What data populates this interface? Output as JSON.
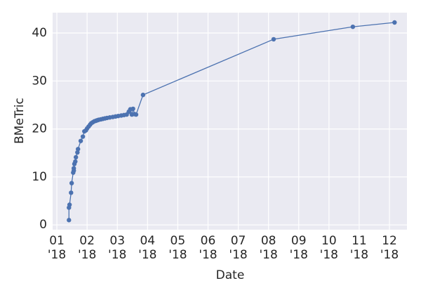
{
  "chart_data": {
    "type": "line",
    "xlabel": "Date",
    "ylabel": "BMeTric",
    "color": "#4c72b0",
    "grid": true,
    "x": [
      1.4,
      1.4,
      1.42,
      1.47,
      1.49,
      1.54,
      1.56,
      1.56,
      1.58,
      1.61,
      1.63,
      1.68,
      1.7,
      1.79,
      1.86,
      1.91,
      1.96,
      2.0,
      2.05,
      2.1,
      2.14,
      2.19,
      2.24,
      2.29,
      2.33,
      2.38,
      2.45,
      2.52,
      2.59,
      2.66,
      2.75,
      2.85,
      2.94,
      3.03,
      3.13,
      3.22,
      3.31,
      3.38,
      3.43,
      3.48,
      3.52,
      3.57,
      3.62,
      3.85,
      8.17,
      10.79,
      12.17
    ],
    "values": [
      1.0,
      3.6,
      4.2,
      6.7,
      8.7,
      10.9,
      11.3,
      11.8,
      12.7,
      13.2,
      14.1,
      15.1,
      15.8,
      17.5,
      18.4,
      19.5,
      19.7,
      20.1,
      20.5,
      20.9,
      21.2,
      21.4,
      21.6,
      21.7,
      21.8,
      21.9,
      22.0,
      22.1,
      22.2,
      22.3,
      22.4,
      22.5,
      22.6,
      22.7,
      22.8,
      22.9,
      23.0,
      23.6,
      24.1,
      23.0,
      24.2,
      23.1,
      23.0,
      27.1,
      38.7,
      41.3,
      42.2
    ],
    "xlim": [
      0.86,
      12.58
    ],
    "ylim": [
      -1.0,
      44.25
    ],
    "xticks": [
      {
        "value": 1,
        "label": "01\n'18"
      },
      {
        "value": 2,
        "label": "02\n'18"
      },
      {
        "value": 3,
        "label": "03\n'18"
      },
      {
        "value": 4,
        "label": "04\n'18"
      },
      {
        "value": 5,
        "label": "05\n'18"
      },
      {
        "value": 6,
        "label": "06\n'18"
      },
      {
        "value": 7,
        "label": "07\n'18"
      },
      {
        "value": 8,
        "label": "08\n'18"
      },
      {
        "value": 9,
        "label": "09\n'18"
      },
      {
        "value": 10,
        "label": "10\n'18"
      },
      {
        "value": 11,
        "label": "11\n'18"
      },
      {
        "value": 12,
        "label": "12\n'18"
      }
    ],
    "yticks": [
      0,
      10,
      20,
      30,
      40
    ]
  }
}
